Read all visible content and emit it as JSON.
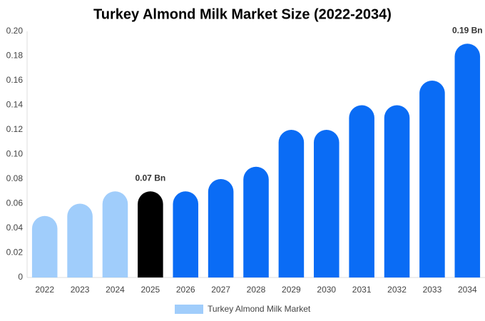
{
  "chart_data": {
    "type": "bar",
    "title": "Turkey Almond Milk Market Size (2022-2034)",
    "categories": [
      "2022",
      "2023",
      "2024",
      "2025",
      "2026",
      "2027",
      "2028",
      "2029",
      "2030",
      "2031",
      "2032",
      "2033",
      "2034"
    ],
    "values": [
      0.05,
      0.06,
      0.07,
      0.07,
      0.07,
      0.08,
      0.09,
      0.12,
      0.12,
      0.14,
      0.14,
      0.16,
      0.19
    ],
    "value_labels": [
      null,
      null,
      null,
      "0.07 Bn",
      null,
      null,
      null,
      null,
      null,
      null,
      null,
      null,
      "0.19 Bn"
    ],
    "colors": [
      "#a0cdfb",
      "#a0cdfb",
      "#a0cdfb",
      "#000000",
      "#0a6cf5",
      "#0a6cf5",
      "#0a6cf5",
      "#0a6cf5",
      "#0a6cf5",
      "#0a6cf5",
      "#0a6cf5",
      "#0a6cf5",
      "#0a6cf5"
    ],
    "legend": {
      "name": "Turkey Almond Milk Market",
      "color": "#a0cdfb",
      "position": "bottom"
    },
    "ylim": [
      0,
      0.2
    ],
    "yticks": [
      0,
      0.02,
      0.04,
      0.06,
      0.08,
      {
        "value": 0.1,
        "label": "0.10"
      },
      0.12,
      0.14,
      0.16,
      0.18,
      {
        "value": 0.2,
        "label": "0.20"
      }
    ],
    "grid": false
  }
}
